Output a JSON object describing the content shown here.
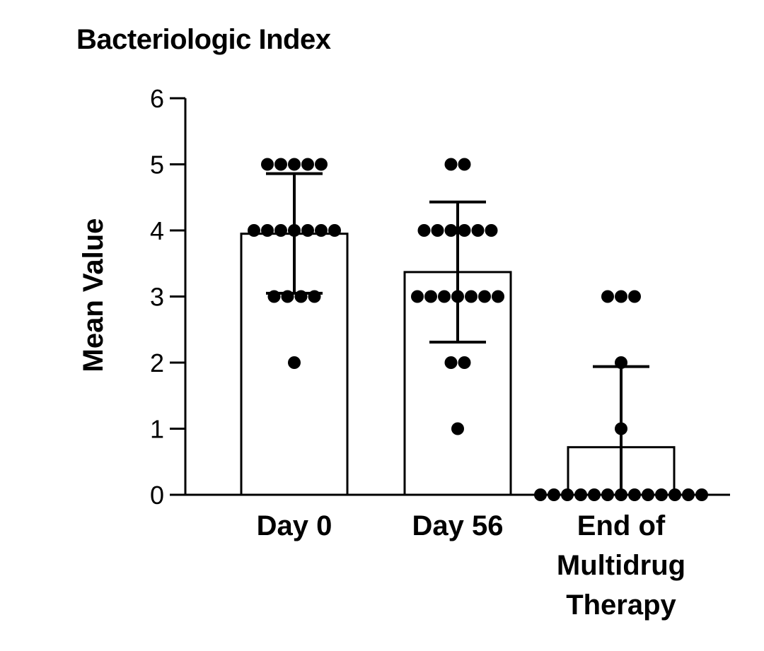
{
  "chart_data": {
    "type": "bar",
    "title": "Bacteriologic Index",
    "ylabel": "Mean Value",
    "xlabel": "",
    "ylim": [
      0,
      6
    ],
    "yticks": [
      0,
      1,
      2,
      3,
      4,
      5,
      6
    ],
    "grid": false,
    "categories": [
      [
        "Day 0"
      ],
      [
        "Day 56"
      ],
      [
        "End of",
        "Multidrug",
        "Therapy"
      ]
    ],
    "values": [
      3.95,
      3.37,
      0.72
    ],
    "error_bars": [
      {
        "low": 3.05,
        "high": 4.86
      },
      {
        "low": 2.31,
        "high": 4.43
      },
      {
        "low": 0.0,
        "high": 1.94
      }
    ],
    "points": [
      [
        5,
        5,
        5,
        5,
        5,
        4,
        4,
        4,
        4,
        4,
        4,
        4,
        3,
        3,
        3,
        3,
        2
      ],
      [
        5,
        5,
        4,
        4,
        4,
        4,
        4,
        4,
        3,
        3,
        3,
        3,
        3,
        3,
        3,
        2,
        2,
        1
      ],
      [
        3,
        3,
        3,
        2,
        1,
        0,
        0,
        0,
        0,
        0,
        0,
        0,
        0,
        0,
        0,
        0,
        0,
        0
      ]
    ]
  }
}
